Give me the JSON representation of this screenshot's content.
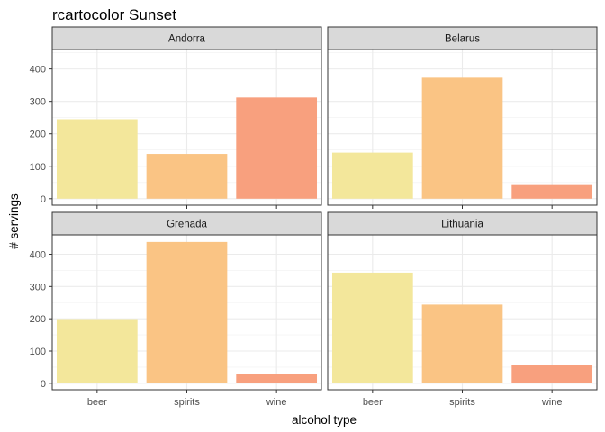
{
  "chart_data": {
    "type": "bar",
    "title": "rcartocolor Sunset",
    "xlabel": "alcohol type",
    "ylabel": "# servings",
    "categories": [
      "beer",
      "spirits",
      "wine"
    ],
    "colors": [
      "#f3e79b",
      "#fac484",
      "#f8a07e"
    ],
    "ylim": [
      -20,
      460
    ],
    "yticks": [
      "0",
      "100",
      "200",
      "300",
      "400"
    ],
    "grid": true,
    "legend": "none",
    "facets": [
      {
        "name": "Andorra",
        "values": [
          245,
          138,
          312
        ]
      },
      {
        "name": "Belarus",
        "values": [
          142,
          373,
          42
        ]
      },
      {
        "name": "Grenada",
        "values": [
          199,
          438,
          28
        ]
      },
      {
        "name": "Lithuania",
        "values": [
          343,
          244,
          56
        ]
      }
    ]
  }
}
